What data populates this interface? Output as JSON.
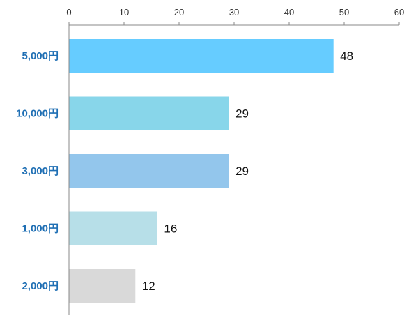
{
  "chart_data": {
    "type": "bar",
    "orientation": "horizontal",
    "categories": [
      "5,000円",
      "10,000円",
      "3,000円",
      "1,000円",
      "2,000円"
    ],
    "values": [
      48,
      29,
      29,
      16,
      12
    ],
    "bar_colors": [
      "#66ccff",
      "#88d6ea",
      "#93c6ec",
      "#b7dfe8",
      "#d9d9d9"
    ],
    "xlim": [
      0,
      60
    ],
    "x_ticks": [
      0,
      10,
      20,
      30,
      40,
      50,
      60
    ],
    "x_axis_position": "top",
    "grid": false,
    "data_labels": true,
    "title": "",
    "xlabel": "",
    "ylabel": ""
  }
}
